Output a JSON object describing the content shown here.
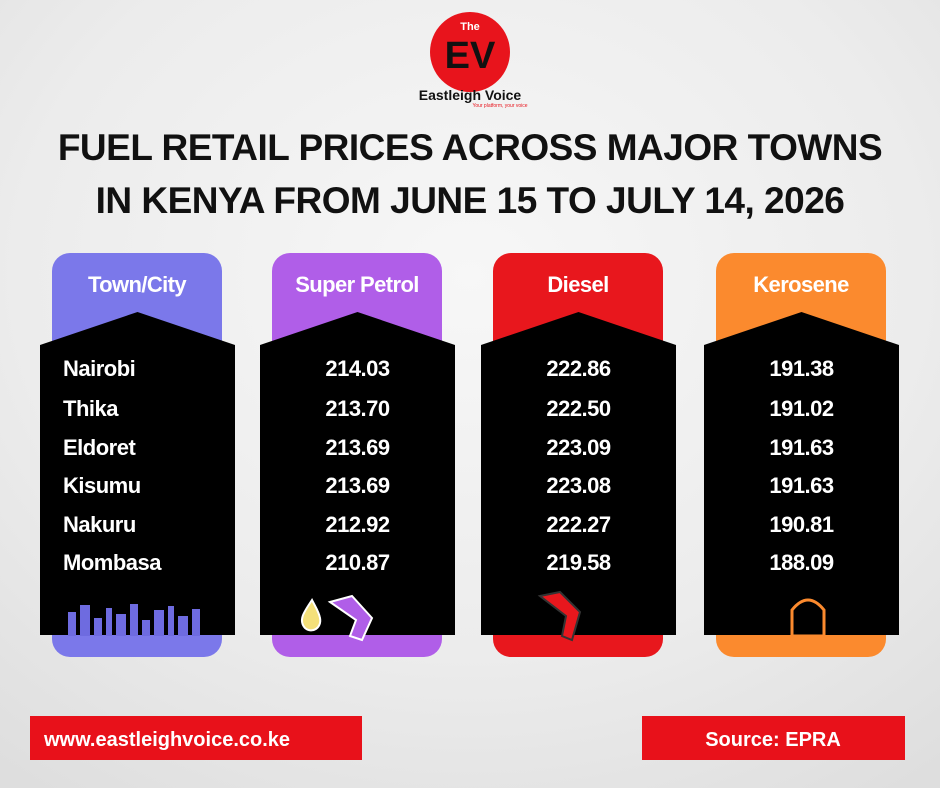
{
  "logo": {
    "prefix": "The",
    "initials": "EV",
    "name": "Eastleigh Voice",
    "tagline": "Your platform, your voice"
  },
  "title": [
    "FUEL RETAIL PRICES ACROSS MAJOR TOWNS",
    "IN KENYA FROM JUNE 15 TO JULY 14, 2026"
  ],
  "table": {
    "headers": [
      "Town/City",
      "Super Petrol",
      "Diesel",
      "Kerosene"
    ],
    "rows": [
      [
        "Nairobi",
        "214.03",
        "222.86",
        "191.38"
      ],
      [
        "Thika",
        "213.70",
        "222.50",
        "191.02"
      ],
      [
        "Eldoret",
        "213.69",
        "223.09",
        "191.63"
      ],
      [
        "Kisumu",
        "213.69",
        "223.08",
        "191.63"
      ],
      [
        "Nakuru",
        "212.92",
        "222.27",
        "190.81"
      ],
      [
        "Mombasa",
        "210.87",
        "219.58",
        "188.09"
      ]
    ]
  },
  "footer": {
    "website": "www.eastleighvoice.co.ke",
    "source": "Source: EPRA"
  }
}
